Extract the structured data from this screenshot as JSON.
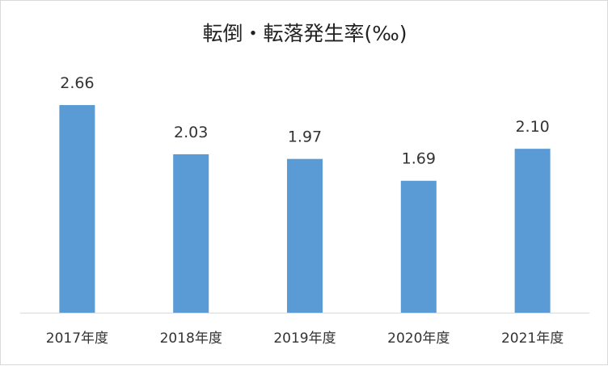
{
  "chart_data": {
    "type": "bar",
    "title": "転倒・転落発生率(‰)",
    "categories": [
      "2017年度",
      "2018年度",
      "2019年度",
      "2020年度",
      "2021年度"
    ],
    "values": [
      2.66,
      2.03,
      1.97,
      1.69,
      2.1
    ],
    "value_labels": [
      "2.66",
      "2.03",
      "1.97",
      "1.69",
      "2.10"
    ],
    "ylim": [
      0,
      3
    ],
    "grid": false,
    "legend": "none",
    "bar_color": "#5b9bd5",
    "axis_color": "#d9d9d9"
  }
}
